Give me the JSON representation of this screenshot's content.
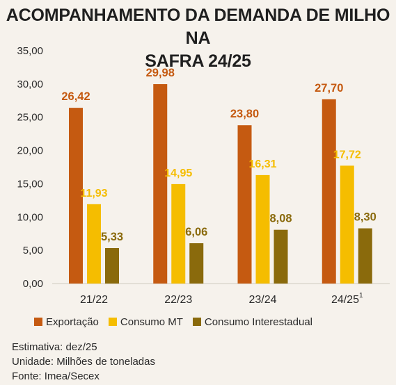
{
  "title": {
    "line1": "ACOMPANHAMENTO DA DEMANDA DE MILHO NA",
    "line2": "SAFRA 24/25"
  },
  "chart_data": {
    "type": "bar",
    "categories": [
      "21/22",
      "22/23",
      "23/24",
      "24/25"
    ],
    "category_superscripts": [
      "",
      "",
      "",
      "1"
    ],
    "series": [
      {
        "name": "Exportação",
        "color": "#c55a11",
        "values": [
          26.42,
          29.98,
          23.8,
          27.7
        ],
        "labels": [
          "26,42",
          "29,98",
          "23,80",
          "27,70"
        ]
      },
      {
        "name": "Consumo MT",
        "color": "#f5bd00",
        "values": [
          11.93,
          14.95,
          16.31,
          17.72
        ],
        "labels": [
          "11,93",
          "14,95",
          "16,31",
          "17,72"
        ]
      },
      {
        "name": "Consumo Interestadual",
        "color": "#8a6a0c",
        "values": [
          5.33,
          6.06,
          8.08,
          8.3
        ],
        "labels": [
          "5,33",
          "6,06",
          "8,08",
          "8,30"
        ]
      }
    ],
    "yticks": [
      "0,00",
      "5,00",
      "10,00",
      "15,00",
      "20,00",
      "25,00",
      "30,00",
      "35,00"
    ],
    "ylim": [
      0,
      35
    ],
    "legend_position": "bottom"
  },
  "footer": {
    "line1": "Estimativa: dez/25",
    "line2": "Unidade: Milhões de toneladas",
    "line3": "Fonte: Imea/Secex"
  }
}
